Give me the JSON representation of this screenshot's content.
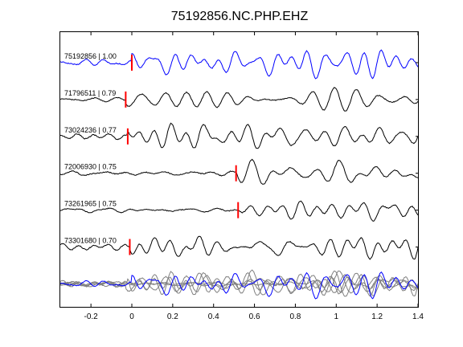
{
  "chart_data": {
    "type": "line",
    "title": "75192856.NC.PHP.EHZ",
    "xlabel": "",
    "ylabel": "",
    "xlim": [
      -0.35,
      1.4
    ],
    "x_ticks": [
      -0.2,
      0,
      0.2,
      0.4,
      0.6,
      0.8,
      1,
      1.2,
      1.4
    ],
    "x_tick_labels": [
      "-0.2",
      "0",
      "0.2",
      "0.4",
      "0.6",
      "0.8",
      "1",
      "1.2",
      "1.4"
    ],
    "grid": false,
    "legend": "none",
    "series": [
      {
        "name": "75192856 | 1.00",
        "color": "#0000ff",
        "pick_time": 0.0,
        "amp": 15,
        "seed": 1
      },
      {
        "name": "71796511 | 0.79",
        "color": "#000000",
        "pick_time": -0.03,
        "amp": 13,
        "seed": 2
      },
      {
        "name": "73024236 | 0.77",
        "color": "#000000",
        "pick_time": -0.02,
        "amp": 15,
        "seed": 3
      },
      {
        "name": "72006930 | 0.75",
        "color": "#000000",
        "pick_time": 0.51,
        "amp": 14,
        "seed": 4
      },
      {
        "name": "73261965 | 0.75",
        "color": "#000000",
        "pick_time": 0.52,
        "amp": 13,
        "seed": 5
      },
      {
        "name": "73301680 | 0.70",
        "color": "#000000",
        "pick_time": -0.01,
        "amp": 14,
        "seed": 6
      }
    ],
    "stack": {
      "label": "",
      "colors": [
        "#0000ff",
        "#808080"
      ]
    },
    "pick_color": "#ff0000"
  }
}
